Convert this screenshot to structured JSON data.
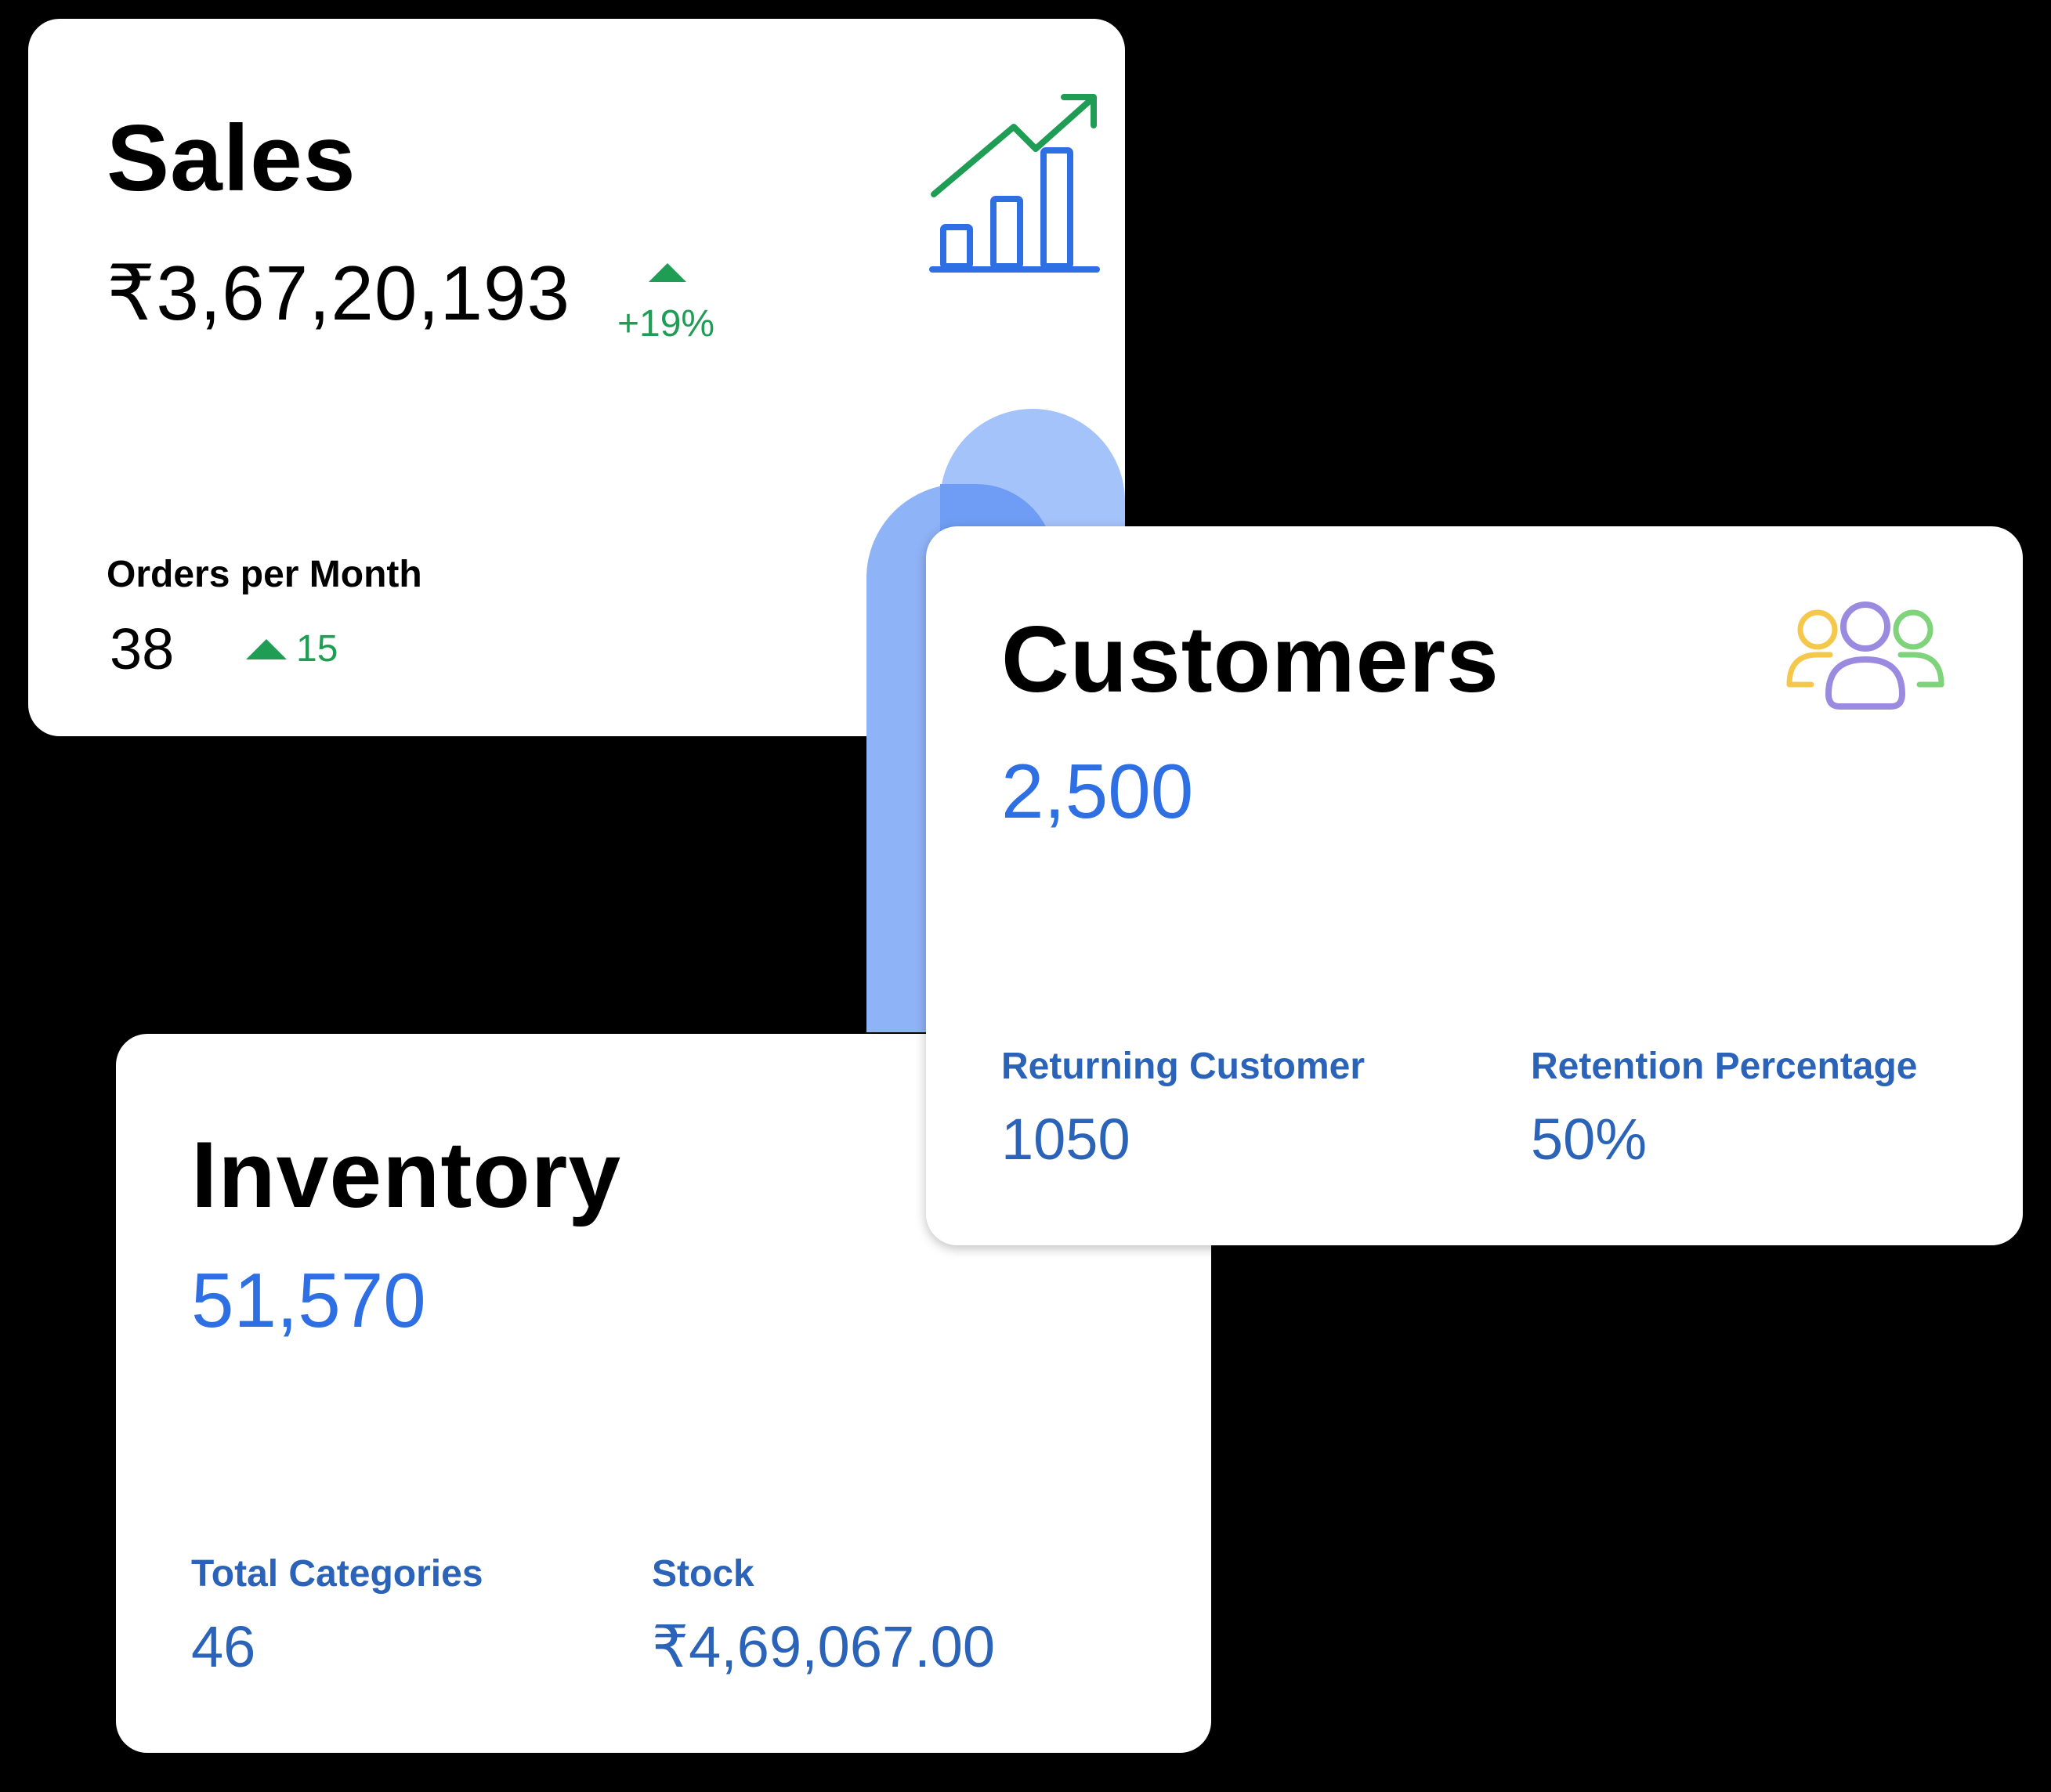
{
  "sales": {
    "title": "Sales",
    "amount": "₹3,67,20,193",
    "change": "+19%",
    "orders_label": "Orders per Month",
    "orders_value": "38",
    "orders_change": "15",
    "icon": "bar-chart-trend-up-icon"
  },
  "customers": {
    "title": "Customers",
    "value": "2,500",
    "returning_label": "Returning Customer",
    "returning_value": "1050",
    "retention_label": "Retention Percentage",
    "retention_value": "50%",
    "icon": "users-group-icon"
  },
  "inventory": {
    "title": "Inventory",
    "value": "51,570",
    "categories_label": "Total Categories",
    "categories_value": "46",
    "stock_label": "Stock",
    "stock_value": "₹4,69,067.00"
  },
  "colors": {
    "background": "#000000",
    "card": "#ffffff",
    "positive": "#1f9d55",
    "accent_blue": "#2f6fe4",
    "label_blue": "#2b63b8",
    "decor_blue": "#8fb3f7"
  }
}
